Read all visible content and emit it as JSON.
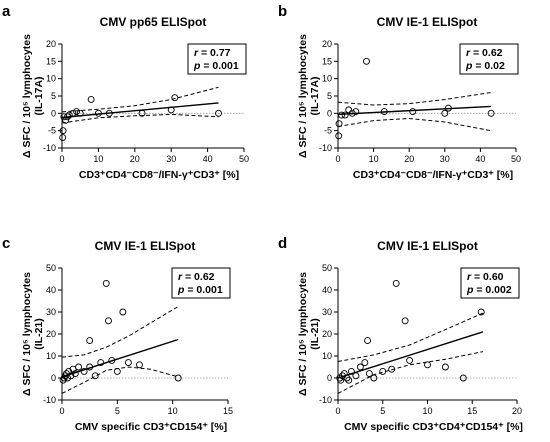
{
  "figure": {
    "y_label_line1": "Δ SFC / 10⁵ lymphocytes",
    "y_label_line2_by_panel": [
      "(IL-17A)",
      "(IL-17A)",
      "(IL-21)",
      "(IL-21)"
    ]
  },
  "chart_data": [
    {
      "panel": "a",
      "type": "scatter",
      "title": "CMV pp65 ELISpot",
      "xlabel": "CD3⁺CD4⁻CD8⁻/IFN-γ⁺CD3⁺ [%]",
      "ylabel": "Δ SFC / 10⁵ lymphocytes (IL-17A)",
      "xlim": [
        0,
        50
      ],
      "ylim": [
        -10,
        20
      ],
      "xticks": [
        0,
        10,
        20,
        30,
        40,
        50
      ],
      "yticks": [
        -10,
        -5,
        0,
        5,
        10,
        15,
        20
      ],
      "stats": {
        "r_label": "r",
        "r": "0.77",
        "p_label": "p",
        "p": "0.001"
      },
      "points": [
        [
          0.2,
          -7
        ],
        [
          0.3,
          -5
        ],
        [
          0.5,
          -1
        ],
        [
          1,
          -2
        ],
        [
          1.5,
          -1
        ],
        [
          2,
          -0.5
        ],
        [
          3,
          0
        ],
        [
          4,
          0.5
        ],
        [
          5,
          0
        ],
        [
          8,
          4
        ],
        [
          10,
          0
        ],
        [
          13,
          0
        ],
        [
          22,
          0
        ],
        [
          30,
          1
        ],
        [
          31,
          4.5
        ],
        [
          43,
          0
        ]
      ],
      "fit": {
        "x0": 0,
        "y0": -1.2,
        "x1": 43,
        "y1": 3.0
      },
      "ci_upper": [
        [
          0,
          0.4
        ],
        [
          10,
          1.2
        ],
        [
          20,
          2.2
        ],
        [
          30,
          4.0
        ],
        [
          43,
          7.5
        ]
      ],
      "ci_lower": [
        [
          0,
          -2.8
        ],
        [
          10,
          -1.3
        ],
        [
          20,
          -0.7
        ],
        [
          30,
          -0.3
        ],
        [
          43,
          -1.0
        ]
      ]
    },
    {
      "panel": "b",
      "type": "scatter",
      "title": "CMV IE-1 ELISpot",
      "xlabel": "CD3⁺CD4⁻CD8⁻/IFN-γ⁺CD3⁺ [%]",
      "ylabel": "Δ SFC / 10⁵ lymphocytes (IL-17A)",
      "xlim": [
        0,
        50
      ],
      "ylim": [
        -10,
        20
      ],
      "xticks": [
        0,
        10,
        20,
        30,
        40,
        50
      ],
      "yticks": [
        -10,
        -5,
        0,
        5,
        10,
        15,
        20
      ],
      "stats": {
        "r_label": "r",
        "r": "0.62",
        "p_label": "p",
        "p": "0.02"
      },
      "points": [
        [
          0.2,
          -6.5
        ],
        [
          0.3,
          -3
        ],
        [
          1,
          -0.5
        ],
        [
          2,
          -0.5
        ],
        [
          3,
          1
        ],
        [
          4,
          0
        ],
        [
          5,
          0.5
        ],
        [
          8,
          15
        ],
        [
          13,
          0.5
        ],
        [
          21,
          0.5
        ],
        [
          30,
          0
        ],
        [
          31,
          1.5
        ],
        [
          43,
          0
        ]
      ],
      "fit": {
        "x0": 0,
        "y0": -0.3,
        "x1": 43,
        "y1": 2.0
      },
      "ci_upper": [
        [
          0,
          3.2
        ],
        [
          10,
          2.4
        ],
        [
          20,
          2.8
        ],
        [
          30,
          4.0
        ],
        [
          43,
          6.0
        ]
      ],
      "ci_lower": [
        [
          0,
          -3.8
        ],
        [
          10,
          -2.1
        ],
        [
          20,
          -1.5
        ],
        [
          30,
          -2.5
        ],
        [
          43,
          -5.0
        ]
      ]
    },
    {
      "panel": "c",
      "type": "scatter",
      "title": "CMV IE-1 ELISpot",
      "xlabel": "CMV specific CD3⁺CD154⁺ [%]",
      "ylabel": "Δ SFC / 10⁵ lymphocytes (IL-21)",
      "xlim": [
        0,
        15
      ],
      "ylim": [
        -10,
        50
      ],
      "xticks": [
        0,
        5,
        10,
        15
      ],
      "yticks": [
        -10,
        0,
        10,
        20,
        30,
        40,
        50
      ],
      "stats": {
        "r_label": "r",
        "r": "0.62",
        "p_label": "p",
        "p": "0.001"
      },
      "points": [
        [
          0.1,
          -1
        ],
        [
          0.2,
          0
        ],
        [
          0.3,
          1
        ],
        [
          0.4,
          2
        ],
        [
          0.5,
          0
        ],
        [
          0.6,
          3
        ],
        [
          0.8,
          1
        ],
        [
          1,
          4
        ],
        [
          1.2,
          2
        ],
        [
          1.5,
          5
        ],
        [
          2,
          3
        ],
        [
          2.5,
          5
        ],
        [
          2.5,
          17
        ],
        [
          3,
          1
        ],
        [
          3.5,
          7
        ],
        [
          4,
          43
        ],
        [
          4.2,
          26
        ],
        [
          4.5,
          8
        ],
        [
          5,
          3
        ],
        [
          5.5,
          30
        ],
        [
          6,
          7
        ],
        [
          7,
          6
        ],
        [
          10.5,
          0
        ]
      ],
      "fit": {
        "x0": 0,
        "y0": 0.5,
        "x1": 10.5,
        "y1": 17.5
      },
      "ci_upper": [
        [
          0,
          9.5
        ],
        [
          2,
          10.5
        ],
        [
          4,
          14
        ],
        [
          6,
          19
        ],
        [
          8,
          25
        ],
        [
          10.5,
          32.5
        ]
      ],
      "ci_lower": [
        [
          0,
          -7
        ],
        [
          2,
          -2
        ],
        [
          4,
          3.5
        ],
        [
          6,
          5
        ],
        [
          8,
          4
        ],
        [
          10.5,
          0.5
        ]
      ]
    },
    {
      "panel": "d",
      "type": "scatter",
      "title": "CMV IE-1 ELISpot",
      "xlabel": "CMV specific CD3⁺CD4⁺CD154⁺ [%]",
      "ylabel": "Δ SFC / 10⁵ lymphocytes (IL-21)",
      "xlim": [
        0,
        20
      ],
      "ylim": [
        -10,
        50
      ],
      "xticks": [
        0,
        5,
        10,
        15,
        20
      ],
      "yticks": [
        -10,
        0,
        10,
        20,
        30,
        40,
        50
      ],
      "stats": {
        "r_label": "r",
        "r": "0.60",
        "p_label": "p",
        "p": "0.002"
      },
      "points": [
        [
          0.2,
          0
        ],
        [
          0.3,
          -1
        ],
        [
          0.5,
          1
        ],
        [
          0.7,
          2
        ],
        [
          1,
          0
        ],
        [
          1.2,
          -1
        ],
        [
          1.5,
          3
        ],
        [
          2,
          1
        ],
        [
          2.5,
          5
        ],
        [
          3,
          7
        ],
        [
          3.3,
          17
        ],
        [
          3.5,
          2
        ],
        [
          4,
          0
        ],
        [
          5,
          3
        ],
        [
          6,
          4
        ],
        [
          6.5,
          43
        ],
        [
          7.5,
          26
        ],
        [
          8,
          8
        ],
        [
          10,
          6
        ],
        [
          12,
          5
        ],
        [
          14,
          0
        ],
        [
          16,
          30
        ]
      ],
      "fit": {
        "x0": 0,
        "y0": 0,
        "x1": 16.2,
        "y1": 21
      },
      "ci_upper": [
        [
          0,
          7.5
        ],
        [
          4,
          10.5
        ],
        [
          8,
          15
        ],
        [
          12,
          22
        ],
        [
          16.2,
          29.5
        ]
      ],
      "ci_lower": [
        [
          0,
          -7
        ],
        [
          4,
          1.5
        ],
        [
          8,
          6
        ],
        [
          12,
          8.5
        ],
        [
          16.2,
          12
        ]
      ]
    }
  ]
}
